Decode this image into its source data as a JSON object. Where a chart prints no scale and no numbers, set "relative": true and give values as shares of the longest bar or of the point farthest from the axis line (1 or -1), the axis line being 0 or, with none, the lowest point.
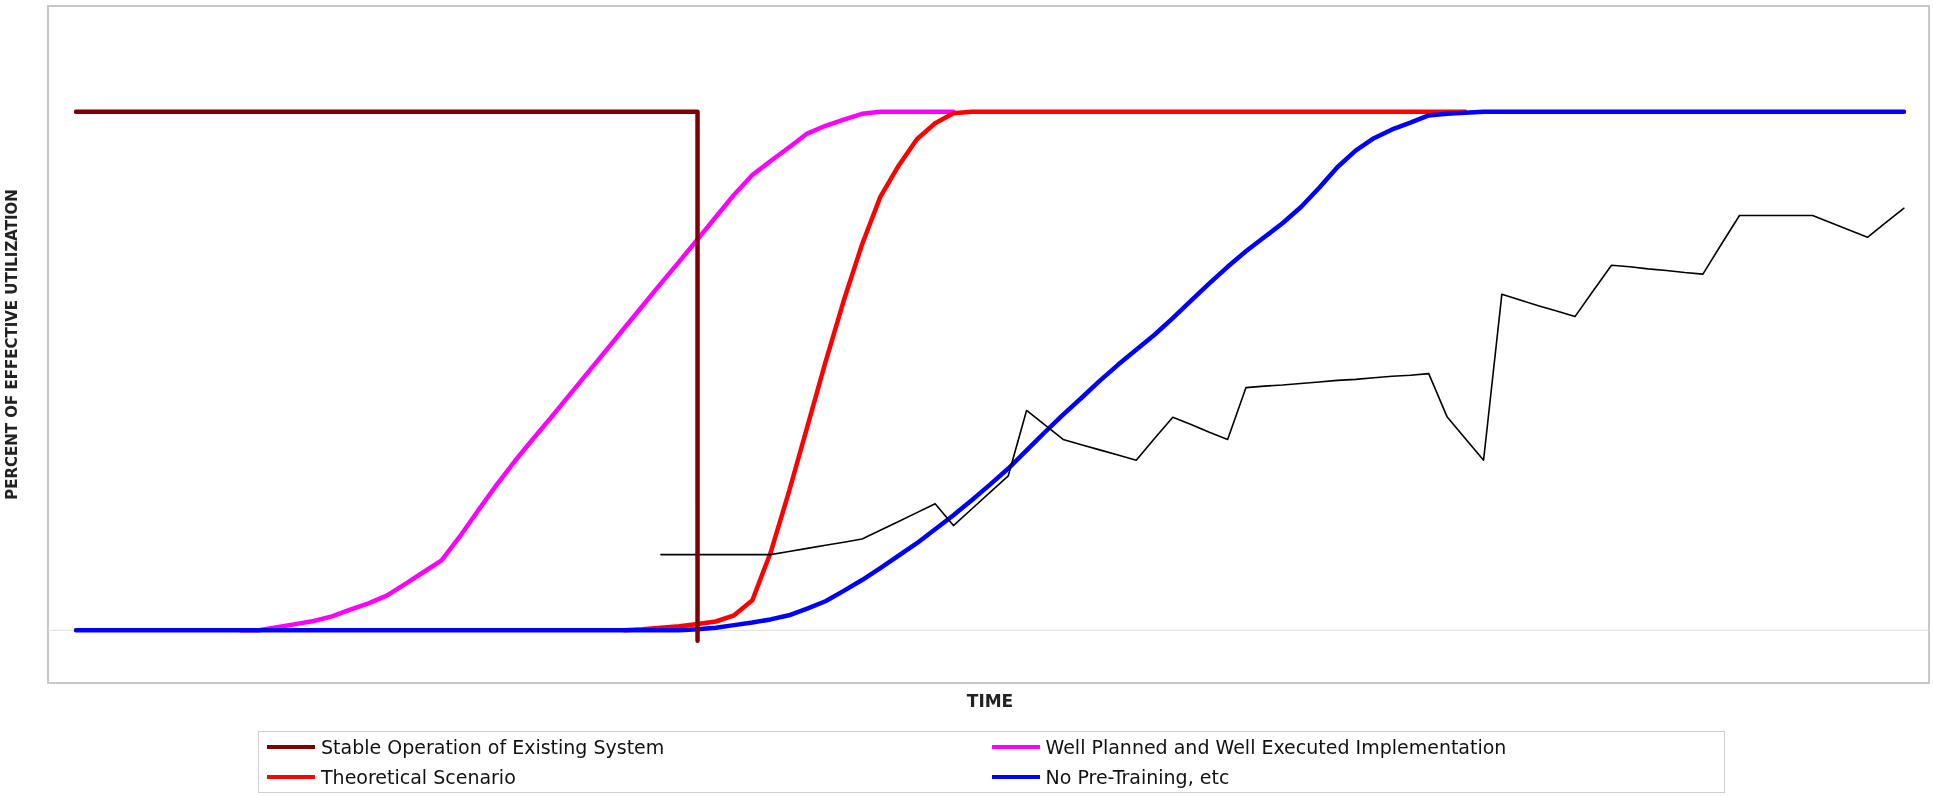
{
  "chart_data": {
    "type": "line",
    "relative": true,
    "xlabel": "TIME",
    "ylabel": "PERCENT OF EFFECTIVE UTILIZATION",
    "grid": false,
    "legend": "bottom",
    "categories": [
      null,
      null,
      null,
      null,
      null,
      null,
      null,
      null,
      null,
      null,
      null,
      null,
      null,
      null,
      null,
      null,
      null,
      null,
      null,
      null,
      null,
      null,
      null,
      null,
      null,
      null,
      null,
      null,
      null,
      null,
      null,
      null,
      null,
      null,
      null,
      null,
      null,
      null,
      null,
      null,
      null,
      null,
      null,
      null,
      null,
      null,
      null,
      null,
      null,
      null,
      null,
      null,
      null,
      null,
      null,
      null,
      null,
      null,
      null,
      null,
      null,
      null,
      null,
      null,
      null,
      null,
      null,
      null,
      null,
      null,
      null,
      null,
      null,
      null,
      null,
      null,
      null,
      null,
      null,
      null,
      null,
      null,
      null,
      null,
      null,
      null,
      null,
      null,
      null,
      null,
      null,
      null,
      null,
      null,
      null,
      null,
      null,
      null,
      null,
      null,
      null
    ],
    "series": [
      {
        "name": "Stable Operation of Existing System",
        "color": "#800000",
        "type": "step",
        "values": [
          1,
          1,
          1,
          1,
          1,
          1,
          1,
          1,
          1,
          1,
          1,
          1,
          1,
          1,
          1,
          1,
          1,
          1,
          1,
          1,
          1,
          1,
          1,
          1,
          1,
          1,
          1,
          1,
          1,
          1,
          1,
          1,
          1,
          1,
          -0.02,
          null,
          null,
          null,
          null,
          null,
          null,
          null,
          null,
          null,
          null,
          null,
          null,
          null,
          null,
          null,
          null,
          null,
          null,
          null,
          null,
          null,
          null,
          null,
          null,
          null,
          null,
          null,
          null,
          null,
          null,
          null,
          null,
          null,
          null,
          null,
          null,
          null,
          null,
          null,
          null,
          null,
          null,
          null,
          null,
          null,
          null,
          null,
          null,
          null,
          null,
          null,
          null,
          null,
          null,
          null,
          null,
          null,
          null,
          null,
          null,
          null,
          null,
          null,
          null,
          null,
          null
        ]
      },
      {
        "name": "Well Planned and Well Executed Implementation",
        "color": "#ff00ff",
        "values": [
          null,
          null,
          null,
          null,
          null,
          null,
          null,
          null,
          null,
          0,
          0,
          0.006,
          0.012,
          0.018,
          0.027,
          0.04,
          0.052,
          0.067,
          0.089,
          0.112,
          0.135,
          0.181,
          0.231,
          0.28,
          0.326,
          0.369,
          0.411,
          0.454,
          0.497,
          0.54,
          0.583,
          0.626,
          0.669,
          0.711,
          0.754,
          0.797,
          0.84,
          0.878,
          0.905,
          0.931,
          0.958,
          0.973,
          0.985,
          0.996,
          1,
          1,
          1,
          1,
          1,
          null,
          null,
          null,
          null,
          null,
          null,
          null,
          null,
          null,
          null,
          null,
          null,
          null,
          null,
          null,
          null,
          null,
          null,
          null,
          null,
          null,
          null,
          null,
          null,
          null,
          null,
          null,
          null,
          null,
          null,
          null,
          null,
          null,
          null,
          null,
          null,
          null,
          null,
          null,
          null,
          null,
          null,
          null,
          null,
          null,
          null,
          null,
          null,
          null,
          null,
          null,
          null
        ]
      },
      {
        "name": "Theoretical Scenario",
        "color": "#ff0000",
        "values": [
          null,
          null,
          null,
          null,
          null,
          null,
          null,
          null,
          null,
          null,
          null,
          null,
          null,
          null,
          null,
          null,
          null,
          null,
          null,
          null,
          null,
          null,
          null,
          null,
          null,
          null,
          null,
          null,
          null,
          null,
          0,
          0.002,
          0.005,
          0.008,
          0.012,
          0.017,
          0.029,
          0.058,
          0.15,
          0.267,
          0.392,
          0.517,
          0.636,
          0.744,
          0.836,
          0.896,
          0.947,
          0.978,
          0.997,
          1,
          1,
          1,
          1,
          1,
          1,
          1,
          1,
          1,
          1,
          1,
          1,
          1,
          1,
          1,
          1,
          1,
          1,
          1,
          1,
          1,
          1,
          1,
          1,
          1,
          1,
          1,
          1,
          null,
          null,
          null,
          null,
          null,
          null,
          null,
          null,
          null,
          null,
          null,
          null,
          null,
          null,
          null,
          null,
          null,
          null,
          null,
          null,
          null,
          null,
          null,
          null
        ]
      },
      {
        "name": "No Pre-Training, etc",
        "color": "#0000ff",
        "values": [
          0,
          0,
          0,
          0,
          0,
          0,
          0,
          0,
          0,
          0,
          0,
          0,
          0,
          0,
          0,
          0,
          0,
          0,
          0,
          0,
          0,
          0,
          0,
          0,
          0,
          0,
          0,
          0,
          0,
          0,
          0,
          0,
          0,
          0,
          0.002,
          0.005,
          0.01,
          0.015,
          0.021,
          0.029,
          0.042,
          0.056,
          0.076,
          0.097,
          0.12,
          0.144,
          0.168,
          0.195,
          0.222,
          0.251,
          0.281,
          0.312,
          0.347,
          0.382,
          0.416,
          0.448,
          0.481,
          0.512,
          0.541,
          0.57,
          0.602,
          0.636,
          0.669,
          0.701,
          0.731,
          0.758,
          0.785,
          0.816,
          0.853,
          0.893,
          0.925,
          0.949,
          0.966,
          0.979,
          0.993,
          0.996,
          0.998,
          1,
          1,
          1,
          1,
          1,
          1,
          1,
          1,
          1,
          1,
          1,
          1,
          1,
          1,
          1,
          1,
          1,
          1,
          1,
          1,
          1,
          1,
          1,
          1
        ]
      },
      {
        "color": "#000000",
        "values": [
          null,
          null,
          null,
          null,
          null,
          null,
          null,
          null,
          null,
          null,
          null,
          null,
          null,
          null,
          null,
          null,
          null,
          null,
          null,
          null,
          null,
          null,
          null,
          null,
          null,
          null,
          null,
          null,
          null,
          null,
          null,
          null,
          0.146,
          0.146,
          0.146,
          0.146,
          0.146,
          0.146,
          0.146,
          0.152,
          0.158,
          0.164,
          0.17,
          0.176,
          0.193,
          0.21,
          0.227,
          0.244,
          0.202,
          0.234,
          0.266,
          0.298,
          0.424,
          0.396,
          0.368,
          0.358,
          0.348,
          0.338,
          0.328,
          0.37,
          0.411,
          0.397,
          0.382,
          0.368,
          0.468,
          0.471,
          0.473,
          0.476,
          0.479,
          0.482,
          0.484,
          0.487,
          0.49,
          0.492,
          0.495,
          0.412,
          0.37,
          0.328,
          0.648,
          0.637,
          0.626,
          0.616,
          0.605,
          0.655,
          0.704,
          0.701,
          0.697,
          0.694,
          0.69,
          0.687,
          0.744,
          0.8,
          0.8,
          0.8,
          0.8,
          0.8,
          0.786,
          0.772,
          0.758,
          0.786,
          0.814
        ]
      }
    ]
  }
}
